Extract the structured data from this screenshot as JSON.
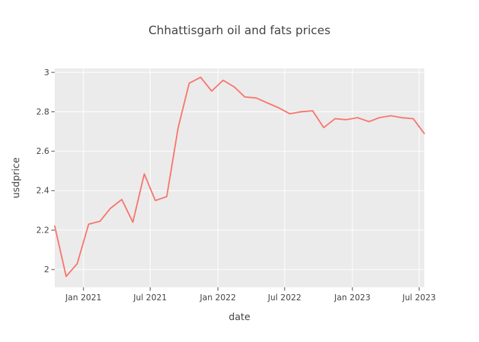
{
  "chart_data": {
    "type": "line",
    "title": "Chhattisgarh oil and fats prices",
    "xlabel": "date",
    "ylabel": "usdprice",
    "grid": true,
    "legend": "none",
    "colors": {
      "plot_background": "#ebebeb",
      "grid": "#ffffff",
      "line": "#f8766d",
      "text": "#444444"
    },
    "x_ticks": [
      {
        "date": "2021-01-01",
        "label": "Jan 2021"
      },
      {
        "date": "2021-07-01",
        "label": "Jul 2021"
      },
      {
        "date": "2022-01-01",
        "label": "Jan 2022"
      },
      {
        "date": "2022-07-01",
        "label": "Jul 2022"
      },
      {
        "date": "2023-01-01",
        "label": "Jan 2023"
      },
      {
        "date": "2023-07-01",
        "label": "Jul 2023"
      }
    ],
    "y_ticks": [
      {
        "value": 2.0,
        "label": "2"
      },
      {
        "value": 2.2,
        "label": "2.2"
      },
      {
        "value": 2.4,
        "label": "2.4"
      },
      {
        "value": 2.6,
        "label": "2.6"
      },
      {
        "value": 2.8,
        "label": "2.8"
      },
      {
        "value": 3.0,
        "label": "3"
      }
    ],
    "xlim": [
      "2020-10-15",
      "2023-07-15"
    ],
    "ylim": [
      1.91,
      3.02
    ],
    "series": [
      {
        "x": [
          "2020-10-15",
          "2020-11-15",
          "2020-12-15",
          "2021-01-15",
          "2021-02-15",
          "2021-03-15",
          "2021-04-15",
          "2021-05-15",
          "2021-06-15",
          "2021-07-15",
          "2021-08-15",
          "2021-09-15",
          "2021-10-15",
          "2021-11-15",
          "2021-12-15",
          "2022-01-15",
          "2022-02-15",
          "2022-03-15",
          "2022-04-15",
          "2022-05-15",
          "2022-06-15",
          "2022-07-15",
          "2022-08-15",
          "2022-09-15",
          "2022-10-15",
          "2022-11-15",
          "2022-12-15",
          "2023-01-15",
          "2023-02-15",
          "2023-03-15",
          "2023-04-15",
          "2023-05-15",
          "2023-06-15",
          "2023-07-15"
        ],
        "y": [
          2.22,
          1.965,
          2.03,
          2.23,
          2.245,
          2.31,
          2.355,
          2.24,
          2.485,
          2.35,
          2.37,
          2.72,
          2.945,
          2.975,
          2.905,
          2.96,
          2.925,
          2.875,
          2.87,
          2.845,
          2.82,
          2.79,
          2.8,
          2.805,
          2.72,
          2.765,
          2.76,
          2.77,
          2.75,
          2.77,
          2.78,
          2.77,
          2.765,
          2.69
        ]
      }
    ]
  }
}
